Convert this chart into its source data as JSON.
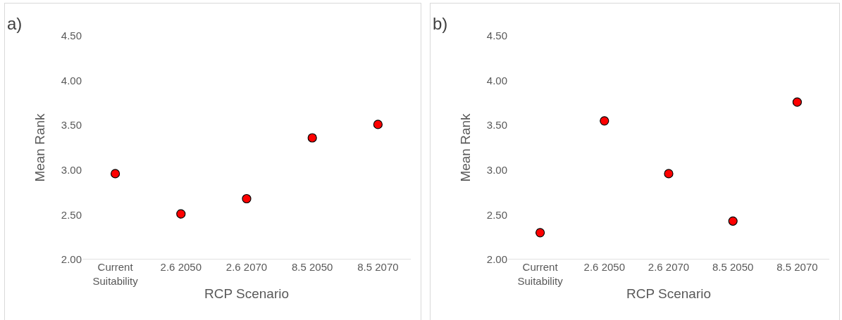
{
  "chart_data": [
    {
      "type": "scatter",
      "title": "a)",
      "xlabel": "RCP Scenario",
      "ylabel": "Mean Rank",
      "categories": [
        "Current\nSuitability",
        "2.6 2050",
        "2.6 2070",
        "8.5 2050",
        "8.5 2070"
      ],
      "series": [
        {
          "color": "#ff0000",
          "values": [
            2.96,
            2.51,
            2.68,
            3.36,
            3.51
          ]
        }
      ],
      "ylim": [
        2,
        4.5
      ],
      "yticks": [
        {
          "value": 2,
          "label": "2.00"
        },
        {
          "value": 2.5,
          "label": "2.50"
        },
        {
          "value": 3,
          "label": "3.00"
        },
        {
          "value": 3.5,
          "label": "3.50"
        },
        {
          "value": 4,
          "label": "4.00"
        },
        {
          "value": 4.5,
          "label": "4.50"
        }
      ],
      "grid": false,
      "marker": "circle"
    },
    {
      "type": "scatter",
      "title": "b)",
      "xlabel": "RCP Scenario",
      "ylabel": "Mean Rank",
      "categories": [
        "Current\nSuitability",
        "2.6 2050",
        "2.6 2070",
        "8.5 2050",
        "8.5 2070"
      ],
      "series": [
        {
          "color": "#ff0000",
          "values": [
            2.3,
            3.55,
            2.96,
            2.43,
            3.76
          ]
        }
      ],
      "ylim": [
        2,
        4.5
      ],
      "yticks": [
        {
          "value": 2,
          "label": "2.00"
        },
        {
          "value": 2.5,
          "label": "2.50"
        },
        {
          "value": 3,
          "label": "3.00"
        },
        {
          "value": 3.5,
          "label": "3.50"
        },
        {
          "value": 4,
          "label": "4.00"
        },
        {
          "value": 4.5,
          "label": "4.50"
        }
      ],
      "grid": false,
      "marker": "circle"
    }
  ]
}
